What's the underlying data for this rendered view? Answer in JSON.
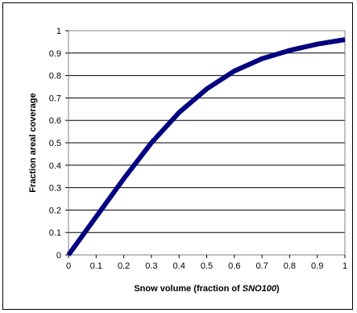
{
  "chart_data": {
    "type": "line",
    "xlabel_prefix": "Snow volume (fraction of ",
    "xlabel_italic": "SNO100",
    "xlabel_suffix": ")",
    "ylabel": "Fraction areal coverage",
    "xlim": [
      0,
      1
    ],
    "ylim": [
      0,
      1
    ],
    "x_ticks": [
      "0",
      "0.1",
      "0.2",
      "0.3",
      "0.4",
      "0.5",
      "0.6",
      "0.7",
      "0.8",
      "0.9",
      "1"
    ],
    "y_ticks": [
      "0",
      "0.1",
      "0.2",
      "0.3",
      "0.4",
      "0.5",
      "0.6",
      "0.7",
      "0.8",
      "0.9",
      "1"
    ],
    "grid": "horizontal",
    "series": [
      {
        "color": "#000080",
        "x": [
          0,
          0.1,
          0.2,
          0.3,
          0.4,
          0.5,
          0.6,
          0.7,
          0.8,
          0.9,
          1.0
        ],
        "y": [
          0,
          0.17,
          0.34,
          0.5,
          0.635,
          0.74,
          0.82,
          0.875,
          0.912,
          0.94,
          0.96
        ]
      }
    ]
  }
}
